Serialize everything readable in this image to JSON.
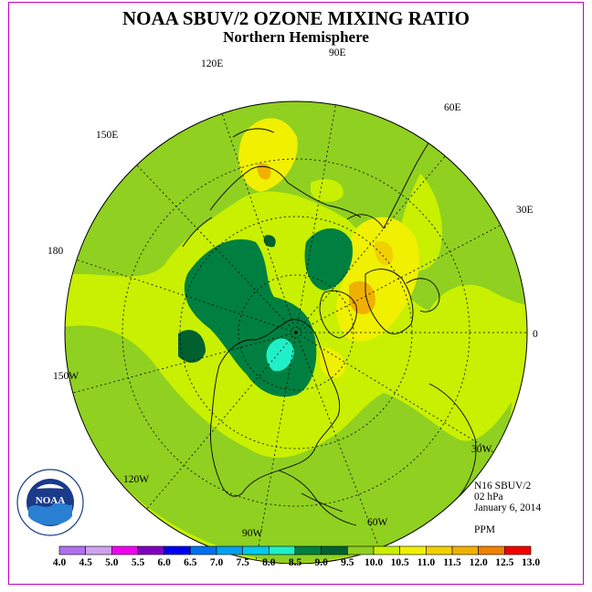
{
  "title": "NOAA SBUV/2 OZONE MIXING RATIO",
  "subtitle": "Northern Hemisphere",
  "info": {
    "satellite": "N16 SBUV/2",
    "pressure": "02 hPa",
    "date": "January 6, 2014",
    "units": "PPM"
  },
  "longitude_labels": [
    {
      "text": "90E"
    },
    {
      "text": "60E"
    },
    {
      "text": "30E"
    },
    {
      "text": "0"
    },
    {
      "text": "30W"
    },
    {
      "text": "60W"
    },
    {
      "text": "90W"
    },
    {
      "text": "120W"
    },
    {
      "text": "150W"
    },
    {
      "text": "180"
    },
    {
      "text": "150E"
    },
    {
      "text": "120E"
    }
  ],
  "colorbar": {
    "ticks": [
      "4.0",
      "4.5",
      "5.0",
      "5.5",
      "6.0",
      "6.5",
      "7.0",
      "7.5",
      "8.0",
      "8.5",
      "9.0",
      "9.5",
      "10.0",
      "10.5",
      "11.0",
      "11.5",
      "12.0",
      "12.5",
      "13.0"
    ],
    "colors": [
      "#b070f0",
      "#d0a0f0",
      "#f000f0",
      "#8000c0",
      "#0000f0",
      "#0070f0",
      "#00a0f0",
      "#00c8f0",
      "#20f0c8",
      "#008040",
      "#006030",
      "#90d020",
      "#c8f000",
      "#f0f000",
      "#f0d000",
      "#f0b000",
      "#f08000",
      "#f00000",
      "#a05020"
    ]
  },
  "logo": {
    "text": "NOAA"
  }
}
